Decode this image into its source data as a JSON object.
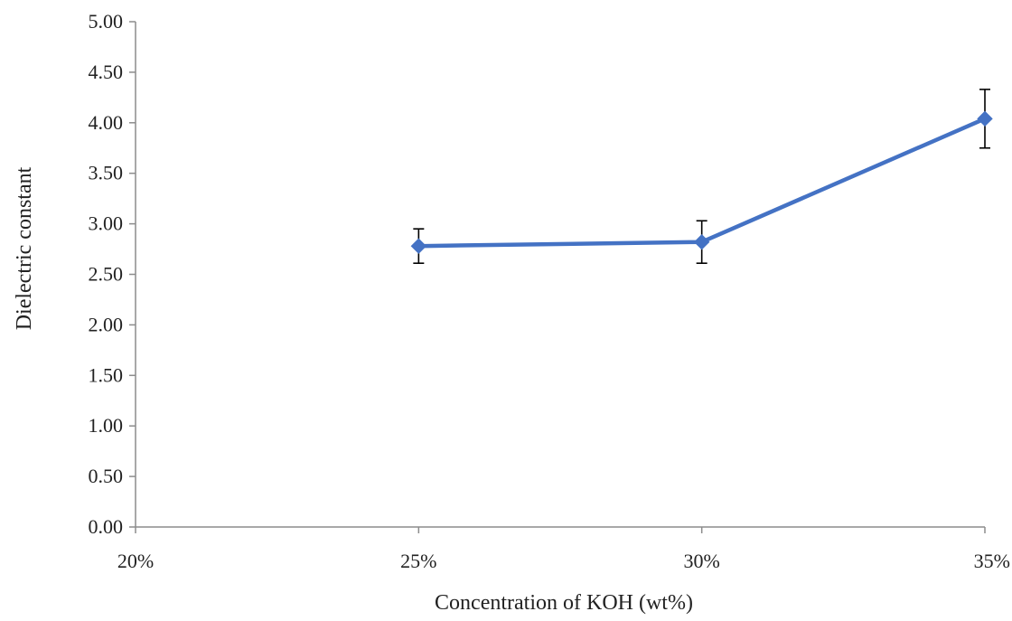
{
  "chart_data": {
    "type": "line",
    "title": "",
    "xlabel": "Concentration of KOH (wt%)",
    "ylabel": "Dielectric constant",
    "categories": [
      "20%",
      "25%",
      "30%",
      "35%"
    ],
    "y_ticks": [
      "0.00",
      "0.50",
      "1.00",
      "1.50",
      "2.00",
      "2.50",
      "3.00",
      "3.50",
      "4.00",
      "4.50",
      "5.00"
    ],
    "ylim": [
      0,
      5
    ],
    "grid": false,
    "legend": "none",
    "series": [
      {
        "color": "#4472C4",
        "marker": "diamond",
        "points": [
          {
            "x": "25%",
            "y": 2.78,
            "err_low": 0.17,
            "err_high": 0.17
          },
          {
            "x": "30%",
            "y": 2.82,
            "err_low": 0.21,
            "err_high": 0.21
          },
          {
            "x": "35%",
            "y": 4.04,
            "err_low": 0.29,
            "err_high": 0.29
          }
        ]
      }
    ]
  }
}
